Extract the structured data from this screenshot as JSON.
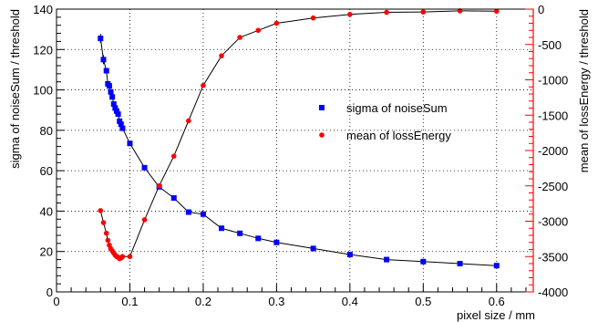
{
  "chart_data": {
    "type": "scatter",
    "xlabel": "pixel size / mm",
    "ylabel_left": "sigma of noiseSum / threshold",
    "ylabel_right": "mean of lossEnergy / threshold",
    "xlim": [
      0,
      0.65
    ],
    "ylim_left": [
      0,
      140
    ],
    "ylim_right": [
      -4000,
      0
    ],
    "x_ticks": [
      "0",
      "0.1",
      "0.2",
      "0.3",
      "0.4",
      "0.5",
      "0.6"
    ],
    "y_left_ticks": [
      "0",
      "20",
      "40",
      "60",
      "80",
      "100",
      "120",
      "140"
    ],
    "y_right_ticks": [
      "-4000",
      "-3500",
      "-3000",
      "-2500",
      "-2000",
      "-1500",
      "-1000",
      "-500",
      "0"
    ],
    "grid": true,
    "legend_position": "center-right",
    "series": [
      {
        "name": "sigma of noiseSum",
        "axis": "left",
        "marker": "square",
        "color": "#0000ff",
        "x": [
          0.06,
          0.064,
          0.068,
          0.07,
          0.072,
          0.074,
          0.076,
          0.078,
          0.08,
          0.082,
          0.084,
          0.086,
          0.088,
          0.09,
          0.1,
          0.12,
          0.14,
          0.16,
          0.18,
          0.2,
          0.225,
          0.25,
          0.275,
          0.3,
          0.35,
          0.4,
          0.45,
          0.5,
          0.55,
          0.6
        ],
        "y": [
          125.5,
          115,
          109.5,
          103,
          102,
          99,
          96.5,
          93,
          91,
          89.5,
          88,
          84.5,
          83,
          81,
          73.5,
          61.5,
          52,
          46.5,
          39.5,
          38.5,
          31.5,
          29,
          26.5,
          24.5,
          21.5,
          18.5,
          16,
          15,
          14,
          13
        ]
      },
      {
        "name": "mean of lossEnergy",
        "axis": "right",
        "marker": "circle",
        "color": "#ff0000",
        "x": [
          0.06,
          0.064,
          0.068,
          0.07,
          0.072,
          0.074,
          0.076,
          0.078,
          0.08,
          0.082,
          0.084,
          0.086,
          0.088,
          0.09,
          0.1,
          0.12,
          0.14,
          0.16,
          0.18,
          0.2,
          0.225,
          0.25,
          0.275,
          0.3,
          0.35,
          0.4,
          0.45,
          0.5,
          0.55,
          0.6
        ],
        "y": [
          -2850,
          -3020,
          -3170,
          -3270,
          -3340,
          -3390,
          -3420,
          -3450,
          -3480,
          -3500,
          -3510,
          -3530,
          -3520,
          -3500,
          -3500,
          -2980,
          -2500,
          -2080,
          -1580,
          -1080,
          -660,
          -400,
          -300,
          -200,
          -125,
          -75,
          -45,
          -40,
          -25,
          -30
        ]
      }
    ]
  }
}
